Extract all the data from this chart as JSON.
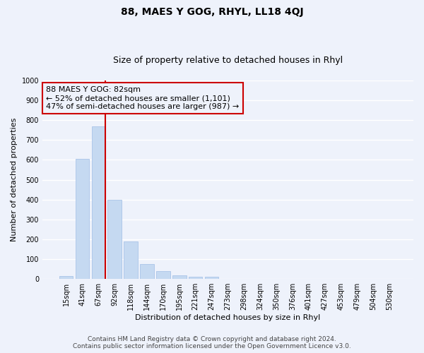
{
  "title": "88, MAES Y GOG, RHYL, LL18 4QJ",
  "subtitle": "Size of property relative to detached houses in Rhyl",
  "xlabel": "Distribution of detached houses by size in Rhyl",
  "ylabel": "Number of detached properties",
  "bar_labels": [
    "15sqm",
    "41sqm",
    "67sqm",
    "92sqm",
    "118sqm",
    "144sqm",
    "170sqm",
    "195sqm",
    "221sqm",
    "247sqm",
    "273sqm",
    "298sqm",
    "324sqm",
    "350sqm",
    "376sqm",
    "401sqm",
    "427sqm",
    "453sqm",
    "479sqm",
    "504sqm",
    "530sqm"
  ],
  "bar_values": [
    15,
    605,
    770,
    400,
    190,
    77,
    40,
    18,
    12,
    12,
    0,
    0,
    0,
    0,
    0,
    0,
    0,
    0,
    0,
    0,
    0
  ],
  "bar_color": "#c5d9f1",
  "bar_edge_color": "#aac4e8",
  "vline_color": "#cc0000",
  "annotation_line1": "88 MAES Y GOG: 82sqm",
  "annotation_line2": "← 52% of detached houses are smaller (1,101)",
  "annotation_line3": "47% of semi-detached houses are larger (987) →",
  "ylim": [
    0,
    1000
  ],
  "yticks": [
    0,
    100,
    200,
    300,
    400,
    500,
    600,
    700,
    800,
    900,
    1000
  ],
  "footer_line1": "Contains HM Land Registry data © Crown copyright and database right 2024.",
  "footer_line2": "Contains public sector information licensed under the Open Government Licence v3.0.",
  "bg_color": "#eef2fb",
  "grid_color": "#ffffff",
  "title_fontsize": 10,
  "subtitle_fontsize": 9,
  "axis_label_fontsize": 8,
  "tick_fontsize": 7,
  "annotation_fontsize": 8,
  "footer_fontsize": 6.5
}
